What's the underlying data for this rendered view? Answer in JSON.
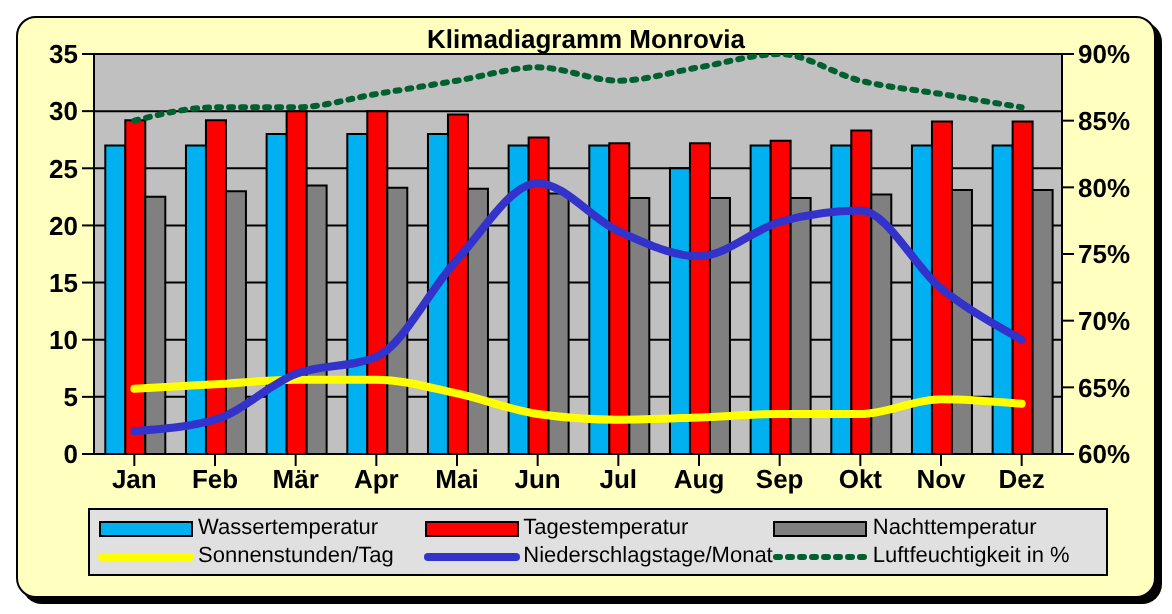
{
  "chart_data": {
    "type": "bar",
    "title": "Klimadiagramm Monrovia",
    "categories": [
      "Jan",
      "Feb",
      "Mär",
      "Apr",
      "Mai",
      "Jun",
      "Jul",
      "Aug",
      "Sep",
      "Okt",
      "Nov",
      "Dez"
    ],
    "series": [
      {
        "name": "Wassertemperatur",
        "color": "#00b0f0",
        "values": [
          27,
          27,
          28,
          28,
          28,
          27,
          27,
          25,
          27,
          27,
          27,
          27
        ]
      },
      {
        "name": "Tagestemperatur",
        "color": "#ff0000",
        "values": [
          29.2,
          29.2,
          30,
          30,
          29.7,
          27.7,
          27.2,
          27.2,
          27.4,
          28.3,
          29.1,
          29.1
        ]
      },
      {
        "name": "Nachttemperatur",
        "color": "#808080",
        "values": [
          22.5,
          23,
          23.5,
          23.3,
          23.2,
          22.8,
          22.4,
          22.4,
          22.4,
          22.7,
          23.1,
          23.1
        ]
      },
      {
        "name": "Sonnenstunden/Tag",
        "type": "line",
        "color": "#ffff00",
        "values": [
          5.7,
          6.1,
          6.5,
          6.5,
          5.3,
          3.5,
          3,
          3.2,
          3.5,
          3.5,
          4.8,
          4.4
        ]
      },
      {
        "name": "Niederschlagstage/Monat",
        "type": "line",
        "color": "#3333cc",
        "values": [
          2,
          3,
          7,
          8.5,
          17,
          23.7,
          19.5,
          17.3,
          20.3,
          21.3,
          14.5,
          10
        ]
      },
      {
        "name": "Luftfeuchtigkeit in %",
        "type": "line",
        "axis": "y2",
        "line_style": "dotted",
        "color": "#006030",
        "values": [
          85,
          86,
          86,
          87,
          88,
          89,
          88,
          89,
          90,
          88,
          87,
          86
        ]
      }
    ],
    "ylim": [
      0,
      35
    ],
    "yticks": [
      0,
      5,
      10,
      15,
      20,
      25,
      30,
      35
    ],
    "y2lim": [
      60,
      90
    ],
    "y2ticks": [
      {
        "value": 60,
        "label": "60%"
      },
      {
        "value": 65,
        "label": "65%"
      },
      {
        "value": 70,
        "label": "70%"
      },
      {
        "value": 75,
        "label": "75%"
      },
      {
        "value": 80,
        "label": "80%"
      },
      {
        "value": 85,
        "label": "85%"
      },
      {
        "value": 90,
        "label": "90%"
      }
    ],
    "grid": "y",
    "legend": "bottom",
    "marker": "none"
  }
}
